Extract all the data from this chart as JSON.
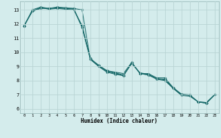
{
  "xlabel": "Humidex (Indice chaleur)",
  "background_color": "#d4ecec",
  "grid_color": "#b8d4d4",
  "line_color": "#1a6b6b",
  "xlim": [
    -0.5,
    23.5
  ],
  "ylim": [
    5.7,
    13.6
  ],
  "yticks": [
    6,
    7,
    8,
    9,
    10,
    11,
    12,
    13
  ],
  "xticks": [
    0,
    1,
    2,
    3,
    4,
    5,
    6,
    7,
    8,
    9,
    10,
    11,
    12,
    13,
    14,
    15,
    16,
    17,
    18,
    19,
    20,
    21,
    22,
    23
  ],
  "lines": [
    {
      "x": [
        0,
        1,
        2,
        3,
        4,
        5,
        6,
        7,
        8,
        9,
        10,
        11,
        12,
        13,
        14,
        15,
        16,
        17,
        18,
        19,
        20,
        21,
        22,
        23
      ],
      "y": [
        11.9,
        12.9,
        13.1,
        13.1,
        13.15,
        13.1,
        13.1,
        11.8,
        9.55,
        9.1,
        8.7,
        8.6,
        8.5,
        9.3,
        8.5,
        8.5,
        8.2,
        8.2,
        7.5,
        7.05,
        7.0,
        6.5,
        6.45,
        7.0
      ]
    },
    {
      "x": [
        0,
        1,
        2,
        3,
        4,
        5,
        6,
        7,
        8,
        9,
        10,
        11,
        12,
        13,
        14,
        15,
        16,
        17,
        18,
        19,
        20,
        21,
        22,
        23
      ],
      "y": [
        11.85,
        12.9,
        13.15,
        13.1,
        13.2,
        13.15,
        13.1,
        13.0,
        9.5,
        9.05,
        8.7,
        8.55,
        8.4,
        9.2,
        8.55,
        8.45,
        8.15,
        8.1,
        7.5,
        7.0,
        6.95,
        6.5,
        6.45,
        7.0
      ]
    },
    {
      "x": [
        0,
        1,
        2,
        3,
        4,
        5,
        6,
        7,
        8,
        9,
        10,
        11,
        12,
        13,
        14,
        15,
        16,
        17,
        18,
        19,
        20,
        21,
        22,
        23
      ],
      "y": [
        11.85,
        13.0,
        13.2,
        13.1,
        13.15,
        13.1,
        13.05,
        11.75,
        9.5,
        9.0,
        8.65,
        8.5,
        8.35,
        9.25,
        8.5,
        8.4,
        8.15,
        8.05,
        7.45,
        7.0,
        6.95,
        6.5,
        6.4,
        7.0
      ]
    },
    {
      "x": [
        0,
        1,
        2,
        3,
        4,
        5,
        6,
        7,
        8,
        9,
        10,
        11,
        12,
        13,
        14,
        15,
        16,
        17,
        18,
        19,
        20,
        21,
        22,
        23
      ],
      "y": [
        11.85,
        12.95,
        13.15,
        13.05,
        13.1,
        13.05,
        13.0,
        11.9,
        9.6,
        9.0,
        8.6,
        8.45,
        8.35,
        9.25,
        8.5,
        8.4,
        8.1,
        8.0,
        7.45,
        6.95,
        6.9,
        6.5,
        6.4,
        7.0
      ]
    }
  ]
}
